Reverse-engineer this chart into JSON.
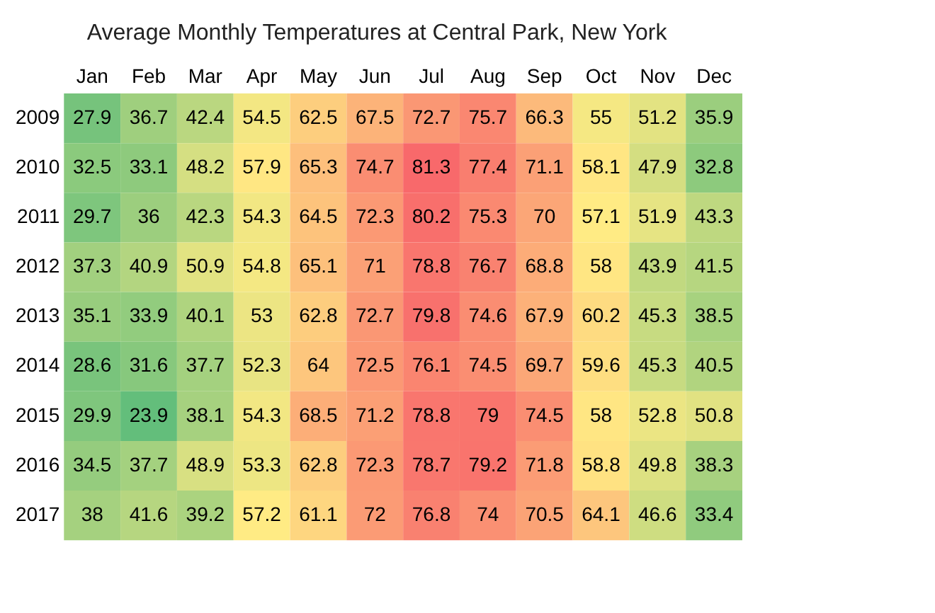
{
  "chart_data": {
    "type": "heatmap",
    "title": "Average Monthly Temperatures at Central Park, New York",
    "categories": [
      "Jan",
      "Feb",
      "Mar",
      "Apr",
      "May",
      "Jun",
      "Jul",
      "Aug",
      "Sep",
      "Oct",
      "Nov",
      "Dec"
    ],
    "y_categories": [
      "2009",
      "2010",
      "2011",
      "2012",
      "2013",
      "2014",
      "2015",
      "2016",
      "2017"
    ],
    "cells": [
      [
        27.9,
        36.7,
        42.4,
        54.5,
        62.5,
        67.5,
        72.7,
        75.7,
        66.3,
        55,
        51.2,
        35.9
      ],
      [
        32.5,
        33.1,
        48.2,
        57.9,
        65.3,
        74.7,
        81.3,
        77.4,
        71.1,
        58.1,
        47.9,
        32.8
      ],
      [
        29.7,
        36,
        42.3,
        54.3,
        64.5,
        72.3,
        80.2,
        75.3,
        70,
        57.1,
        51.9,
        43.3
      ],
      [
        37.3,
        40.9,
        50.9,
        54.8,
        65.1,
        71,
        78.8,
        76.7,
        68.8,
        58,
        43.9,
        41.5
      ],
      [
        35.1,
        33.9,
        40.1,
        53,
        62.8,
        72.7,
        79.8,
        74.6,
        67.9,
        60.2,
        45.3,
        38.5
      ],
      [
        28.6,
        31.6,
        37.7,
        52.3,
        64,
        72.5,
        76.1,
        74.5,
        69.7,
        59.6,
        45.3,
        40.5
      ],
      [
        29.9,
        23.9,
        38.1,
        54.3,
        68.5,
        71.2,
        78.8,
        79,
        74.5,
        58,
        52.8,
        50.8
      ],
      [
        34.5,
        37.7,
        48.9,
        53.3,
        62.8,
        72.3,
        78.7,
        79.2,
        71.8,
        58.8,
        49.8,
        38.3
      ],
      [
        38,
        41.6,
        39.2,
        57.2,
        61.1,
        72,
        76.8,
        74,
        70.5,
        64.1,
        46.6,
        33.4
      ]
    ],
    "colors": [
      "#63be7b",
      "#ffeb84",
      "#f8696b"
    ],
    "data_labels": true
  }
}
